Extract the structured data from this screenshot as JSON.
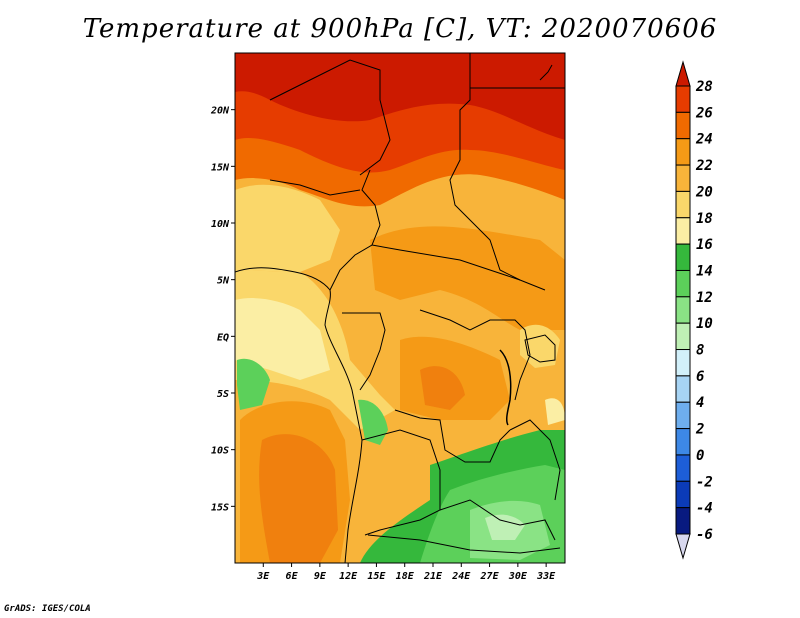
{
  "title": "Temperature at 900hPa [C], VT: 2020070606",
  "credit": "GrADS: IGES/COLA",
  "map": {
    "variable": "Temperature",
    "level": "900hPa",
    "units": "C",
    "valid_time": "2020070606",
    "lat_labels": [
      "20N",
      "15N",
      "10N",
      "5N",
      "EQ",
      "5S",
      "10S",
      "15S"
    ],
    "lon_labels": [
      "3E",
      "6E",
      "9E",
      "12E",
      "15E",
      "18E",
      "21E",
      "24E",
      "27E",
      "30E",
      "33E"
    ],
    "lat_values": [
      20,
      15,
      10,
      5,
      0,
      -5,
      -10,
      -15
    ],
    "lon_values": [
      3,
      6,
      9,
      12,
      15,
      18,
      21,
      24,
      27,
      30,
      33
    ],
    "lon_range": [
      0,
      35
    ],
    "lat_range": [
      -20,
      25
    ]
  },
  "colorbar": {
    "labels": [
      "28",
      "26",
      "24",
      "22",
      "20",
      "18",
      "16",
      "14",
      "12",
      "10",
      "8",
      "6",
      "4",
      "2",
      "0",
      "-2",
      "-4",
      "-6"
    ],
    "colors": [
      "#cc1a00",
      "#e63c00",
      "#f06a00",
      "#f59a16",
      "#f8b43a",
      "#fad76a",
      "#fbeea4",
      "#35b83c",
      "#5cd05a",
      "#8ae385",
      "#bff0b5",
      "#d2f0fa",
      "#a7d4f4",
      "#6eaeee",
      "#3d88e6",
      "#1d5ed8",
      "#0b3bb8",
      "#081a80",
      "#d8d8ee"
    ],
    "over_color": "#cc1a00",
    "under_color": "#d8d8ee"
  }
}
